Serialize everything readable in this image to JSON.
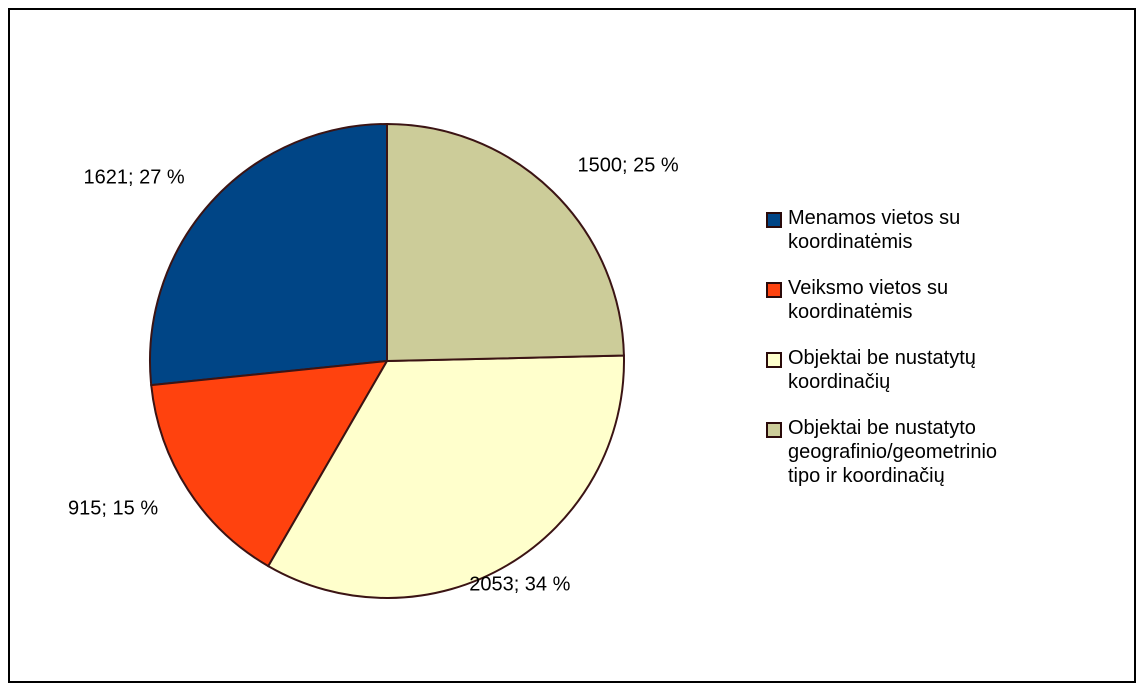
{
  "chart_data": {
    "type": "pie",
    "categories": [
      "Menamos vietos su koordinatėmis",
      "Veiksmo vietos su koordinatėmis",
      "Objektai be nustatytų koordinačių",
      "Objektai be nustatyto geografinio/geometrinio tipo ir koordinačių"
    ],
    "values": [
      1621,
      915,
      2053,
      1500
    ],
    "value_labels": [
      "1621; 27 %",
      "915; 15 %",
      "2053; 34 %",
      "1500; 25 %"
    ],
    "colors": [
      "#004586",
      "#ff420e",
      "#ffffcc",
      "#cccc99"
    ],
    "legend": "right"
  }
}
